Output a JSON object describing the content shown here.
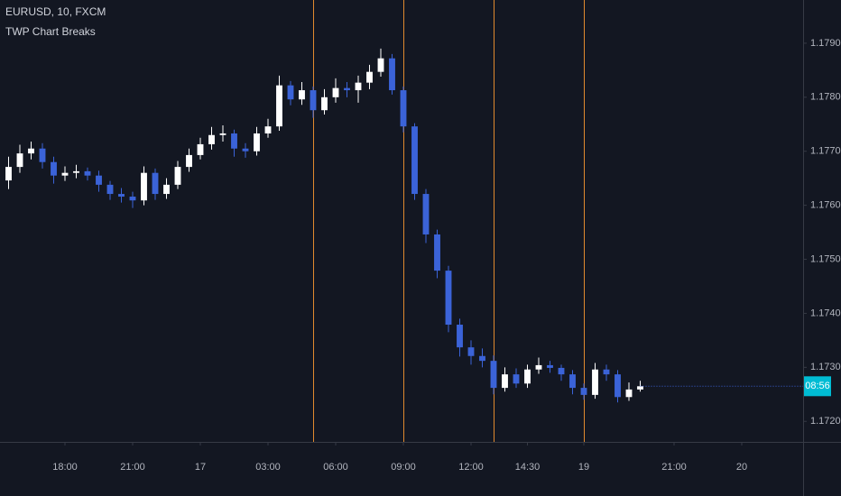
{
  "chart_data": {
    "type": "candlestick",
    "title": "EURUSD, 10, FXCM",
    "subtitle": "TWP Chart Breaks",
    "up_color": "#ffffff",
    "down_color": "#3b63d8",
    "break_color": "#e0892e",
    "countdown": "08:56",
    "x": [
      15.5,
      16,
      16.5,
      17,
      17.5,
      18,
      18.5,
      19,
      19.5,
      20,
      20.5,
      21,
      21.5,
      22,
      22.5,
      23,
      23.5,
      24,
      24.5,
      25,
      25.5,
      26,
      26.5,
      27,
      27.5,
      28,
      28.5,
      29,
      29.5,
      30,
      30.5,
      31,
      31.5,
      32,
      32.5,
      33,
      33.5,
      34,
      34.5,
      35,
      35.5,
      36,
      36.5,
      37,
      37.5,
      38,
      38.5,
      39,
      39.5,
      40,
      40.5,
      41,
      41.5,
      42,
      42.5,
      43,
      43.5
    ],
    "open": [
      1.17646,
      1.17671,
      1.17696,
      1.17705,
      1.1768,
      1.17655,
      1.1766,
      1.17663,
      1.17655,
      1.17638,
      1.17621,
      1.17616,
      1.17609,
      1.1766,
      1.17621,
      1.17638,
      1.17671,
      1.17693,
      1.17713,
      1.1773,
      1.17733,
      1.17705,
      1.177,
      1.17733,
      1.17746,
      1.17822,
      1.17796,
      1.17813,
      1.17776,
      1.178,
      1.17817,
      1.17813,
      1.17827,
      1.17847,
      1.17872,
      1.17813,
      1.17746,
      1.17621,
      1.17546,
      1.17479,
      1.17379,
      1.17337,
      1.17321,
      1.17312,
      1.17262,
      1.17287,
      1.1727,
      1.17296,
      1.17304,
      1.17299,
      1.17287,
      1.17262,
      1.17249,
      1.17296,
      1.17287,
      1.17245,
      1.17259
    ],
    "high": [
      1.1769,
      1.17712,
      1.17718,
      1.17715,
      1.1769,
      1.17672,
      1.17675,
      1.1767,
      1.17664,
      1.17645,
      1.17632,
      1.17625,
      1.17672,
      1.17668,
      1.1765,
      1.17682,
      1.17705,
      1.17725,
      1.17745,
      1.17748,
      1.1774,
      1.17715,
      1.17745,
      1.1776,
      1.1784,
      1.1783,
      1.17828,
      1.1782,
      1.17815,
      1.17835,
      1.17828,
      1.1784,
      1.1786,
      1.1789,
      1.1788,
      1.1782,
      1.17752,
      1.1763,
      1.17555,
      1.17488,
      1.1739,
      1.1735,
      1.17335,
      1.17322,
      1.173,
      1.17298,
      1.17305,
      1.17318,
      1.17312,
      1.17305,
      1.17295,
      1.1727,
      1.17308,
      1.17305,
      1.17295,
      1.17272,
      1.17275
    ],
    "low": [
      1.1763,
      1.1766,
      1.17685,
      1.17668,
      1.1764,
      1.17645,
      1.1765,
      1.17646,
      1.17625,
      1.1761,
      1.17605,
      1.17595,
      1.176,
      1.1761,
      1.17612,
      1.1763,
      1.17662,
      1.17685,
      1.17703,
      1.17718,
      1.1769,
      1.17688,
      1.17692,
      1.17725,
      1.17738,
      1.17785,
      1.17786,
      1.17762,
      1.17768,
      1.1779,
      1.178,
      1.1779,
      1.17815,
      1.17838,
      1.17805,
      1.17735,
      1.1761,
      1.1753,
      1.17465,
      1.17365,
      1.1732,
      1.17305,
      1.173,
      1.1725,
      1.17255,
      1.17262,
      1.17262,
      1.17288,
      1.1729,
      1.17275,
      1.1725,
      1.1724,
      1.17242,
      1.17275,
      1.17235,
      1.17238,
      1.17255
    ],
    "close": [
      1.17671,
      1.17696,
      1.17705,
      1.1768,
      1.17655,
      1.1766,
      1.17663,
      1.17655,
      1.17638,
      1.17621,
      1.17616,
      1.17609,
      1.1766,
      1.17621,
      1.17638,
      1.17671,
      1.17693,
      1.17713,
      1.1773,
      1.17733,
      1.17705,
      1.177,
      1.17733,
      1.17746,
      1.17822,
      1.17796,
      1.17813,
      1.17776,
      1.178,
      1.17817,
      1.17813,
      1.17827,
      1.17847,
      1.17872,
      1.17813,
      1.17746,
      1.17621,
      1.17546,
      1.17479,
      1.17379,
      1.17337,
      1.17321,
      1.17312,
      1.17262,
      1.17287,
      1.1727,
      1.17296,
      1.17304,
      1.17299,
      1.17287,
      1.17262,
      1.17249,
      1.17296,
      1.17287,
      1.17245,
      1.17259,
      1.17265
    ],
    "breaks": [
      29,
      33,
      37,
      41
    ],
    "xlim": [
      15.12,
      50.72
    ],
    "xticks": [
      {
        "value": 18,
        "label": "18:00"
      },
      {
        "value": 21,
        "label": "21:00"
      },
      {
        "value": 24,
        "label": "17"
      },
      {
        "value": 27,
        "label": "03:00"
      },
      {
        "value": 30,
        "label": "06:00"
      },
      {
        "value": 33,
        "label": "09:00"
      },
      {
        "value": 36,
        "label": "12:00"
      },
      {
        "value": 38.5,
        "label": "14:30"
      },
      {
        "value": 41,
        "label": "19"
      },
      {
        "value": 45,
        "label": "21:00"
      },
      {
        "value": 48,
        "label": "20"
      }
    ],
    "ylim": [
      1.17162,
      1.1798
    ],
    "yticks": [
      {
        "value": 1.172,
        "label": "1.17200"
      },
      {
        "value": 1.173,
        "label": "1.17300"
      },
      {
        "value": 1.174,
        "label": "1.17400"
      },
      {
        "value": 1.175,
        "label": "1.17500"
      },
      {
        "value": 1.176,
        "label": "1.17600"
      },
      {
        "value": 1.177,
        "label": "1.17700"
      },
      {
        "value": 1.178,
        "label": "1.17800"
      },
      {
        "value": 1.179,
        "label": "1.17900"
      }
    ]
  }
}
